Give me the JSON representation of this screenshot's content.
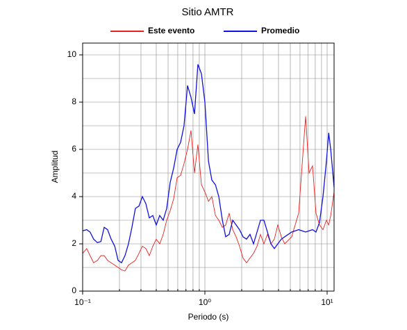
{
  "chart_data": {
    "type": "line",
    "title": "Sitio AMTR",
    "x_label": "Periodo (s)",
    "y_label": "Amplitud",
    "x_scale": "log",
    "grid": true,
    "legend": "top",
    "xlim": [
      0.1,
      11.4
    ],
    "ylim": [
      0,
      10.5
    ],
    "xticks": [
      {
        "value": 0.1,
        "label": "10⁻¹"
      },
      {
        "value": 1,
        "label": "10⁰"
      },
      {
        "value": 10,
        "label": "10¹"
      }
    ],
    "yticks": [
      0,
      2,
      4,
      6,
      8,
      10
    ],
    "y_minor_ticks": [
      1,
      3,
      5,
      7,
      9
    ],
    "x": [
      0.1,
      0.108,
      0.115,
      0.123,
      0.132,
      0.141,
      0.15,
      0.16,
      0.171,
      0.183,
      0.195,
      0.208,
      0.222,
      0.237,
      0.253,
      0.27,
      0.289,
      0.308,
      0.329,
      0.351,
      0.375,
      0.4,
      0.427,
      0.456,
      0.487,
      0.52,
      0.555,
      0.593,
      0.633,
      0.675,
      0.721,
      0.77,
      0.822,
      0.877,
      0.937,
      1.0,
      1.07,
      1.14,
      1.22,
      1.3,
      1.39,
      1.48,
      1.58,
      1.69,
      1.8,
      1.92,
      2.05,
      2.19,
      2.34,
      2.5,
      2.67,
      2.85,
      3.04,
      3.25,
      3.47,
      3.7,
      3.95,
      4.22,
      4.5,
      5.13,
      5.85,
      6.67,
      7.12,
      7.6,
      8.11,
      8.66,
      9.25,
      9.87,
      10.3,
      10.7,
      11.4
    ],
    "series": [
      {
        "name": "Este evento",
        "color": "#e8211f",
        "values": [
          1.6,
          1.8,
          1.5,
          1.2,
          1.3,
          1.5,
          1.5,
          1.3,
          1.2,
          1.1,
          1.0,
          0.9,
          0.85,
          1.1,
          1.2,
          1.3,
          1.6,
          1.9,
          1.8,
          1.5,
          1.9,
          2.2,
          2.0,
          2.4,
          3.0,
          3.4,
          3.9,
          4.8,
          4.9,
          5.4,
          6.0,
          6.8,
          5.0,
          6.2,
          4.5,
          4.2,
          3.8,
          4.0,
          3.2,
          3.0,
          2.7,
          2.8,
          3.3,
          2.6,
          2.3,
          1.9,
          1.4,
          1.2,
          1.4,
          1.6,
          1.9,
          2.4,
          2.0,
          2.4,
          2.0,
          2.2,
          2.8,
          2.3,
          2.0,
          2.3,
          3.3,
          7.4,
          5.0,
          5.3,
          3.3,
          2.8,
          2.6,
          3.0,
          2.8,
          3.2,
          4.2
        ]
      },
      {
        "name": "Promedio",
        "color": "#1010e0",
        "values": [
          2.55,
          2.6,
          2.5,
          2.2,
          2.05,
          2.1,
          2.7,
          2.6,
          2.2,
          1.9,
          1.3,
          1.2,
          1.5,
          2.0,
          2.7,
          3.5,
          3.6,
          4.0,
          3.7,
          3.1,
          3.2,
          2.8,
          3.2,
          3.0,
          3.5,
          4.6,
          5.2,
          6.0,
          6.3,
          7.0,
          8.7,
          8.2,
          7.5,
          9.6,
          9.2,
          8.0,
          5.5,
          4.7,
          4.5,
          4.0,
          3.0,
          2.3,
          2.4,
          3.0,
          2.8,
          2.6,
          2.3,
          2.2,
          2.4,
          2.0,
          2.5,
          3.0,
          3.0,
          2.5,
          2.0,
          1.8,
          2.0,
          2.2,
          2.3,
          2.5,
          2.6,
          2.5,
          2.55,
          2.6,
          2.5,
          2.9,
          4.0,
          5.5,
          6.7,
          6.0,
          4.4
        ]
      }
    ]
  }
}
